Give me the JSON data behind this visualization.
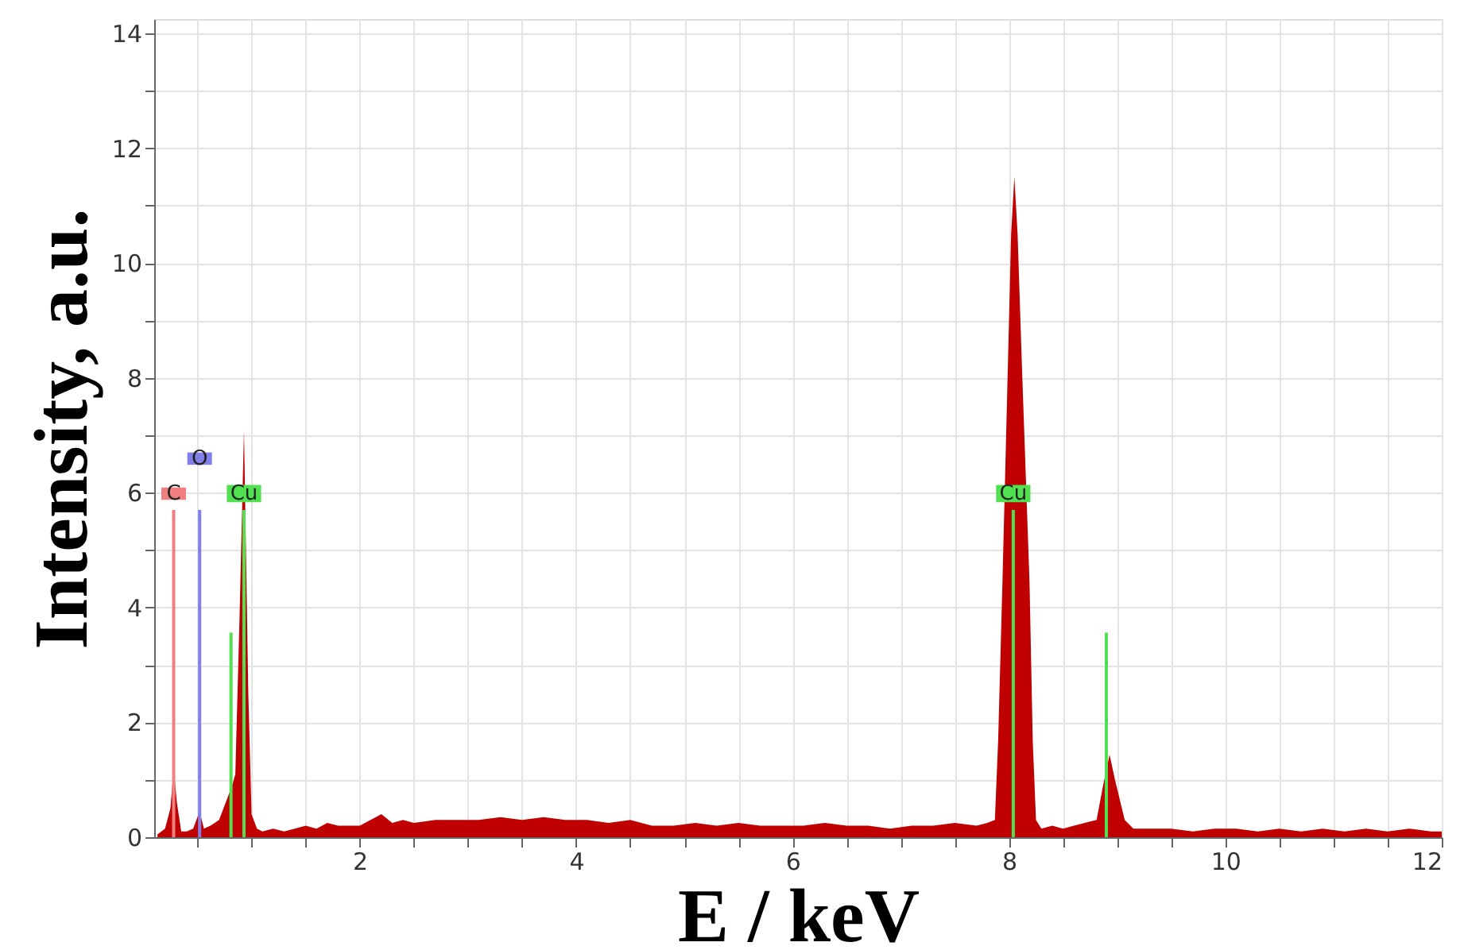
{
  "chart_data": {
    "type": "area",
    "xlabel": "E / keV",
    "ylabel": "Intensity, a.u.",
    "x": [
      0.13,
      0.2,
      0.25,
      0.28,
      0.31,
      0.35,
      0.4,
      0.46,
      0.52,
      0.56,
      0.62,
      0.7,
      0.78,
      0.82,
      0.85,
      0.89,
      0.93,
      0.97,
      1.0,
      1.05,
      1.1,
      1.2,
      1.3,
      1.4,
      1.5,
      1.6,
      1.7,
      1.8,
      1.9,
      2.0,
      2.1,
      2.2,
      2.3,
      2.4,
      2.5,
      2.7,
      2.9,
      3.1,
      3.3,
      3.5,
      3.7,
      3.9,
      4.1,
      4.3,
      4.5,
      4.7,
      4.9,
      5.1,
      5.3,
      5.5,
      5.7,
      5.9,
      6.1,
      6.3,
      6.5,
      6.7,
      6.9,
      7.1,
      7.3,
      7.5,
      7.7,
      7.8,
      7.87,
      7.9,
      7.94,
      7.99,
      8.02,
      8.05,
      8.08,
      8.12,
      8.19,
      8.22,
      8.25,
      8.3,
      8.4,
      8.5,
      8.6,
      8.7,
      8.81,
      8.87,
      8.93,
      8.98,
      9.07,
      9.15,
      9.3,
      9.5,
      9.7,
      9.9,
      10.1,
      10.3,
      10.5,
      10.7,
      10.9,
      11.1,
      11.3,
      11.5,
      11.7,
      11.9,
      12.0
    ],
    "series": [
      {
        "color": "#c00000",
        "values": [
          0.05,
          0.15,
          0.5,
          1.2,
          0.6,
          0.1,
          0.1,
          0.15,
          0.45,
          0.15,
          0.2,
          0.3,
          0.7,
          0.9,
          1.1,
          3.9,
          7.1,
          2.5,
          0.4,
          0.15,
          0.1,
          0.15,
          0.1,
          0.15,
          0.2,
          0.15,
          0.25,
          0.2,
          0.2,
          0.2,
          0.3,
          0.4,
          0.25,
          0.3,
          0.25,
          0.3,
          0.3,
          0.3,
          0.35,
          0.3,
          0.35,
          0.3,
          0.3,
          0.25,
          0.3,
          0.2,
          0.2,
          0.25,
          0.2,
          0.25,
          0.2,
          0.2,
          0.2,
          0.25,
          0.2,
          0.2,
          0.15,
          0.2,
          0.2,
          0.25,
          0.2,
          0.25,
          0.3,
          1.67,
          4.45,
          8.2,
          10.5,
          11.5,
          10.5,
          8.2,
          4.45,
          1.67,
          0.3,
          0.15,
          0.2,
          0.15,
          0.2,
          0.25,
          0.3,
          0.9,
          1.44,
          1.0,
          0.3,
          0.15,
          0.15,
          0.15,
          0.1,
          0.15,
          0.15,
          0.1,
          0.15,
          0.1,
          0.15,
          0.1,
          0.15,
          0.1,
          0.15,
          0.1,
          0.1
        ]
      }
    ],
    "xlim": [
      0.1,
      12
    ],
    "xticks": [
      {
        "value": 0.5,
        "label": null
      },
      {
        "value": 1,
        "label": null
      },
      {
        "value": 1.5,
        "label": null
      },
      2,
      {
        "value": 2.5,
        "label": null
      },
      {
        "value": 3,
        "label": null
      },
      {
        "value": 3.5,
        "label": null
      },
      4,
      {
        "value": 4.5,
        "label": null
      },
      {
        "value": 5,
        "label": null
      },
      {
        "value": 5.5,
        "label": null
      },
      6,
      {
        "value": 6.5,
        "label": null
      },
      {
        "value": 7,
        "label": null
      },
      {
        "value": 7.5,
        "label": null
      },
      8,
      {
        "value": 8.5,
        "label": null
      },
      {
        "value": 9,
        "label": null
      },
      {
        "value": 9.5,
        "label": null
      },
      10,
      {
        "value": 10.5,
        "label": null
      },
      {
        "value": 11,
        "label": null
      },
      {
        "value": 11.5,
        "label": null
      },
      12
    ],
    "ylim": [
      0,
      14.25
    ],
    "yticks": [
      0,
      {
        "value": 1,
        "label": null
      },
      2,
      {
        "value": 3,
        "label": null
      },
      4,
      {
        "value": 5,
        "label": null
      },
      6,
      {
        "value": 7,
        "label": null
      },
      8,
      {
        "value": 9,
        "label": null
      },
      10,
      {
        "value": 11,
        "label": null
      },
      12,
      {
        "value": 13,
        "label": null
      },
      14
    ],
    "grid": true,
    "ref_lines": [
      {
        "axis": "x",
        "value": 0.28,
        "label": "C",
        "color": "#f08080"
      },
      {
        "axis": "x",
        "value": 0.52,
        "label": "O",
        "color": "#8080e8"
      },
      {
        "axis": "x",
        "value": 0.93,
        "label": "Cu",
        "color": "#50e050"
      },
      {
        "axis": "x",
        "value": 0.81,
        "color": "#50e050"
      },
      {
        "axis": "x",
        "value": 8.04,
        "label": "Cu",
        "color": "#50e050"
      },
      {
        "axis": "x",
        "value": 8.9,
        "color": "#50e050"
      }
    ]
  }
}
